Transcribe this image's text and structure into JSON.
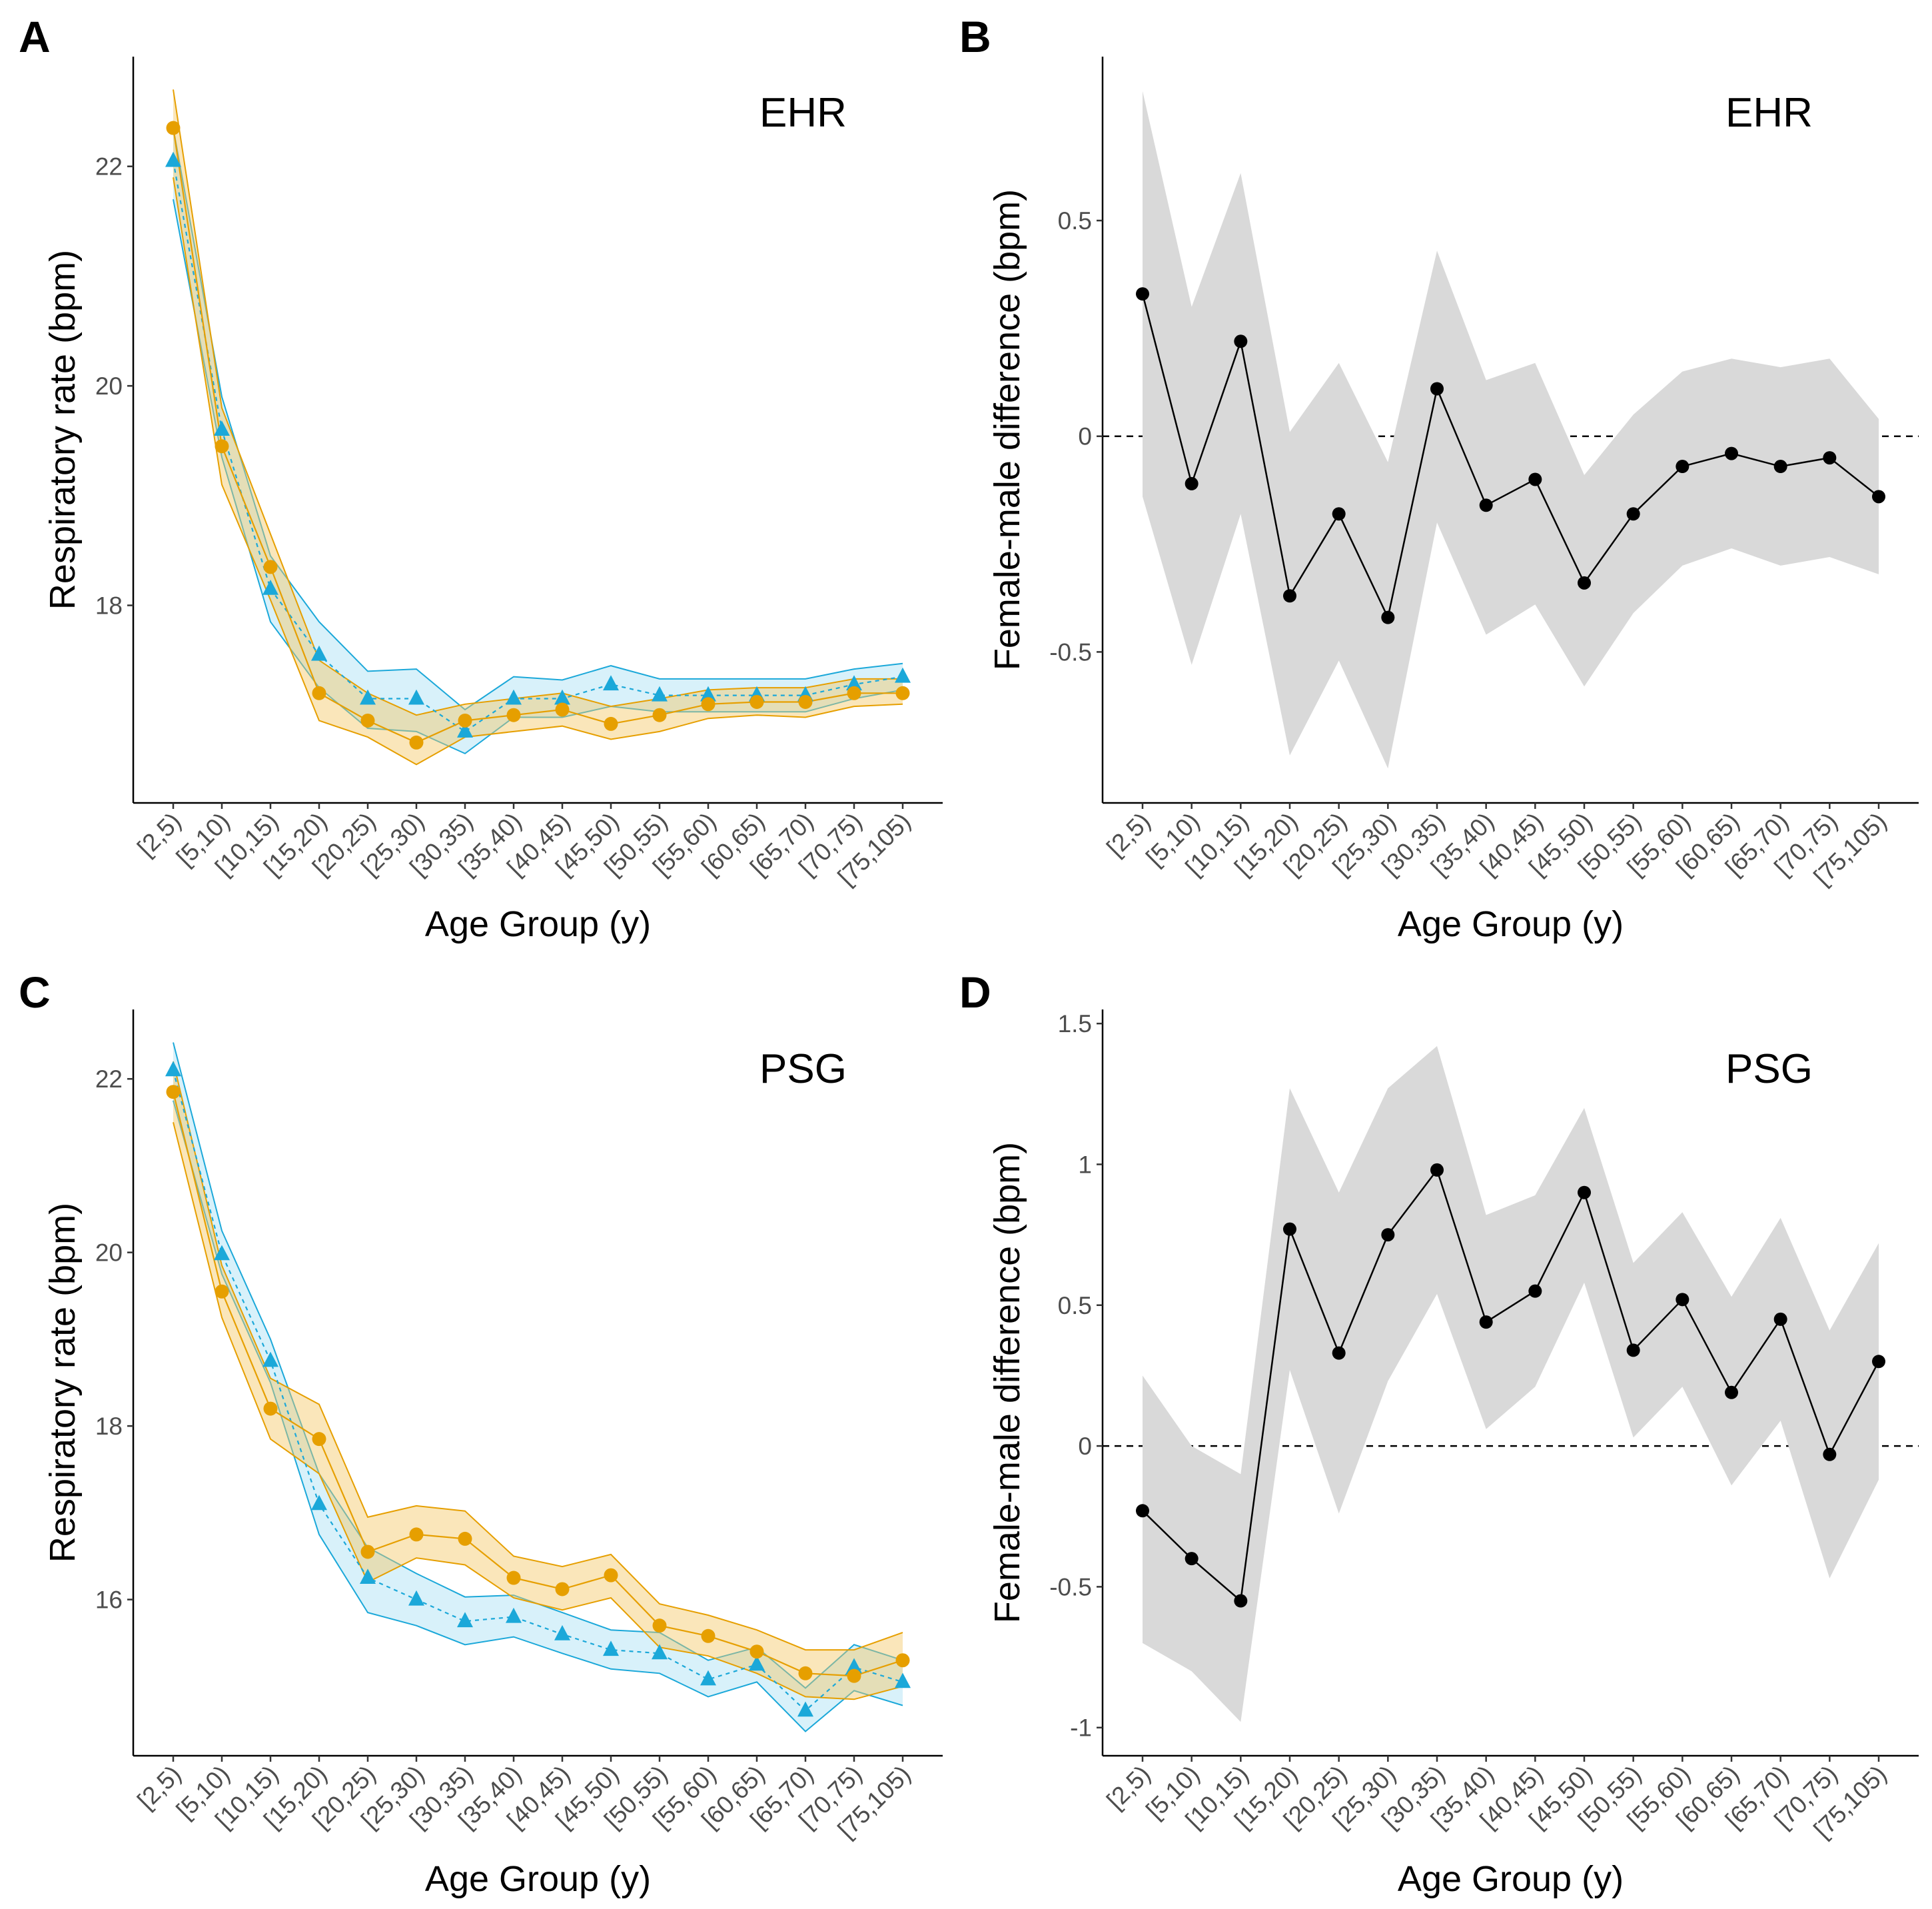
{
  "colors": {
    "female": "#E69F00",
    "male": "#1BA8D9",
    "female_fill": "#F3C766",
    "male_fill": "#A9E0F4",
    "diff": "#000000",
    "diff_ci": "#D9D9D9"
  },
  "chart_data": [
    {
      "id": "A",
      "panel_letter": "A",
      "label": "EHR",
      "type": "line",
      "xlabel": "Age Group (y)",
      "ylabel": "Respiratory rate (bpm)",
      "categories": [
        "[2,5)",
        "[5,10)",
        "[10,15)",
        "[15,20)",
        "[20,25)",
        "[25,30)",
        "[30,35)",
        "[35,40)",
        "[40,45)",
        "[45,50)",
        "[50,55)",
        "[55,60)",
        "[60,65)",
        "[65,70)",
        "[70,75)",
        "[75,105)"
      ],
      "ylim": [
        16.2,
        23.0
      ],
      "yticks": [
        18,
        20,
        22
      ],
      "ytick_labels": [
        "18",
        "20",
        "22"
      ],
      "series": [
        {
          "name": "female",
          "marker": "circle",
          "values": [
            22.35,
            19.45,
            18.35,
            17.2,
            16.95,
            16.75,
            16.95,
            17.0,
            17.05,
            16.92,
            17.0,
            17.1,
            17.12,
            17.12,
            17.2,
            17.2
          ],
          "lower": [
            21.9,
            19.1,
            18.05,
            16.95,
            16.8,
            16.55,
            16.8,
            16.85,
            16.9,
            16.78,
            16.85,
            16.97,
            17.0,
            16.98,
            17.08,
            17.1
          ],
          "upper": [
            22.7,
            19.8,
            18.65,
            17.5,
            17.2,
            17.0,
            17.1,
            17.15,
            17.2,
            17.08,
            17.15,
            17.23,
            17.25,
            17.25,
            17.33,
            17.33
          ]
        },
        {
          "name": "male",
          "marker": "triangle",
          "values": [
            22.05,
            19.6,
            18.15,
            17.55,
            17.15,
            17.15,
            16.85,
            17.15,
            17.15,
            17.28,
            17.18,
            17.18,
            17.18,
            17.18,
            17.28,
            17.35
          ],
          "lower": [
            21.7,
            19.35,
            17.85,
            17.25,
            16.88,
            16.85,
            16.65,
            16.98,
            16.98,
            17.08,
            17.03,
            17.03,
            17.03,
            17.03,
            17.15,
            17.23
          ],
          "upper": [
            22.35,
            19.9,
            18.45,
            17.85,
            17.4,
            17.42,
            17.05,
            17.35,
            17.32,
            17.45,
            17.33,
            17.33,
            17.33,
            17.33,
            17.42,
            17.47
          ]
        }
      ]
    },
    {
      "id": "B",
      "panel_letter": "B",
      "label": "EHR",
      "type": "line",
      "xlabel": "Age Group (y)",
      "ylabel": "Female-male difference (bpm)",
      "categories": [
        "[2,5)",
        "[5,10)",
        "[10,15)",
        "[15,20)",
        "[20,25)",
        "[25,30)",
        "[30,35)",
        "[35,40)",
        "[40,45)",
        "[45,50)",
        "[50,55)",
        "[55,60)",
        "[60,65)",
        "[65,70)",
        "[70,75)",
        "[75,105)"
      ],
      "ylim": [
        -0.85,
        0.88
      ],
      "yticks": [
        -0.5,
        0,
        0.5
      ],
      "ytick_labels": [
        "-0.5",
        "0",
        "0.5"
      ],
      "reference_line": 0,
      "series": [
        {
          "name": "difference",
          "marker": "circle",
          "values": [
            0.33,
            -0.11,
            0.22,
            -0.37,
            -0.18,
            -0.42,
            0.11,
            -0.16,
            -0.1,
            -0.34,
            -0.18,
            -0.07,
            -0.04,
            -0.07,
            -0.05,
            -0.14
          ],
          "lower": [
            -0.14,
            -0.53,
            -0.18,
            -0.74,
            -0.52,
            -0.77,
            -0.2,
            -0.46,
            -0.39,
            -0.58,
            -0.41,
            -0.3,
            -0.26,
            -0.3,
            -0.28,
            -0.32
          ],
          "upper": [
            0.8,
            0.3,
            0.61,
            0.01,
            0.17,
            -0.06,
            0.43,
            0.13,
            0.17,
            -0.09,
            0.05,
            0.15,
            0.18,
            0.16,
            0.18,
            0.04
          ]
        }
      ]
    },
    {
      "id": "C",
      "panel_letter": "C",
      "label": "PSG",
      "type": "line",
      "xlabel": "Age Group (y)",
      "ylabel": "Respiratory rate (bpm)",
      "categories": [
        "[2,5)",
        "[5,10)",
        "[10,15)",
        "[15,20)",
        "[20,25)",
        "[25,30)",
        "[30,35)",
        "[35,40)",
        "[40,45)",
        "[45,50)",
        "[50,55)",
        "[55,60)",
        "[60,65)",
        "[65,70)",
        "[70,75)",
        "[75,105)"
      ],
      "ylim": [
        14.2,
        22.8
      ],
      "yticks": [
        16,
        18,
        20,
        22
      ],
      "ytick_labels": [
        "16",
        "18",
        "20",
        "22"
      ],
      "series": [
        {
          "name": "female",
          "marker": "circle",
          "values": [
            21.85,
            19.55,
            18.2,
            17.85,
            16.55,
            16.75,
            16.7,
            16.25,
            16.12,
            16.28,
            15.7,
            15.58,
            15.4,
            15.15,
            15.12,
            15.3
          ],
          "lower": [
            21.5,
            19.25,
            17.85,
            17.45,
            16.2,
            16.48,
            16.4,
            16.02,
            15.88,
            16.02,
            15.45,
            15.35,
            15.15,
            14.88,
            14.85,
            15.0
          ],
          "upper": [
            22.2,
            19.85,
            18.55,
            18.25,
            16.95,
            17.08,
            17.02,
            16.5,
            16.38,
            16.52,
            15.95,
            15.82,
            15.65,
            15.42,
            15.42,
            15.62
          ]
        },
        {
          "name": "male",
          "marker": "triangle",
          "values": [
            22.1,
            19.98,
            18.75,
            17.1,
            16.25,
            16.0,
            15.75,
            15.8,
            15.6,
            15.42,
            15.38,
            15.08,
            15.25,
            14.72,
            15.22,
            15.05
          ],
          "lower": [
            21.75,
            19.75,
            18.5,
            16.75,
            15.85,
            15.7,
            15.48,
            15.57,
            15.38,
            15.2,
            15.15,
            14.88,
            15.05,
            14.48,
            14.95,
            14.78
          ],
          "upper": [
            22.42,
            20.25,
            19.0,
            17.45,
            16.6,
            16.3,
            16.03,
            16.05,
            15.85,
            15.65,
            15.62,
            15.3,
            15.45,
            14.98,
            15.48,
            15.3
          ]
        }
      ]
    },
    {
      "id": "D",
      "panel_letter": "D",
      "label": "PSG",
      "type": "line",
      "xlabel": "Age Group (y)",
      "ylabel": "Female-male difference (bpm)",
      "categories": [
        "[2,5)",
        "[5,10)",
        "[10,15)",
        "[15,20)",
        "[20,25)",
        "[25,30)",
        "[30,35)",
        "[35,40)",
        "[40,45)",
        "[45,50)",
        "[50,55)",
        "[55,60)",
        "[60,65)",
        "[65,70)",
        "[70,75)",
        "[75,105)"
      ],
      "ylim": [
        -1.1,
        1.55
      ],
      "yticks": [
        -1,
        -0.5,
        0,
        0.5,
        1,
        1.5
      ],
      "ytick_labels": [
        "-1",
        "-0.5",
        "0",
        "0.5",
        "1",
        "1.5"
      ],
      "reference_line": 0,
      "series": [
        {
          "name": "difference",
          "marker": "circle",
          "values": [
            -0.23,
            -0.4,
            -0.55,
            0.77,
            0.33,
            0.75,
            0.98,
            0.44,
            0.55,
            0.9,
            0.34,
            0.52,
            0.19,
            0.45,
            -0.03,
            0.3
          ],
          "lower": [
            -0.7,
            -0.8,
            -0.98,
            0.27,
            -0.24,
            0.23,
            0.54,
            0.06,
            0.21,
            0.58,
            0.03,
            0.21,
            -0.14,
            0.09,
            -0.47,
            -0.12
          ],
          "upper": [
            0.25,
            0.0,
            -0.1,
            1.27,
            0.9,
            1.27,
            1.42,
            0.82,
            0.89,
            1.2,
            0.65,
            0.83,
            0.53,
            0.81,
            0.41,
            0.72
          ]
        }
      ]
    }
  ]
}
